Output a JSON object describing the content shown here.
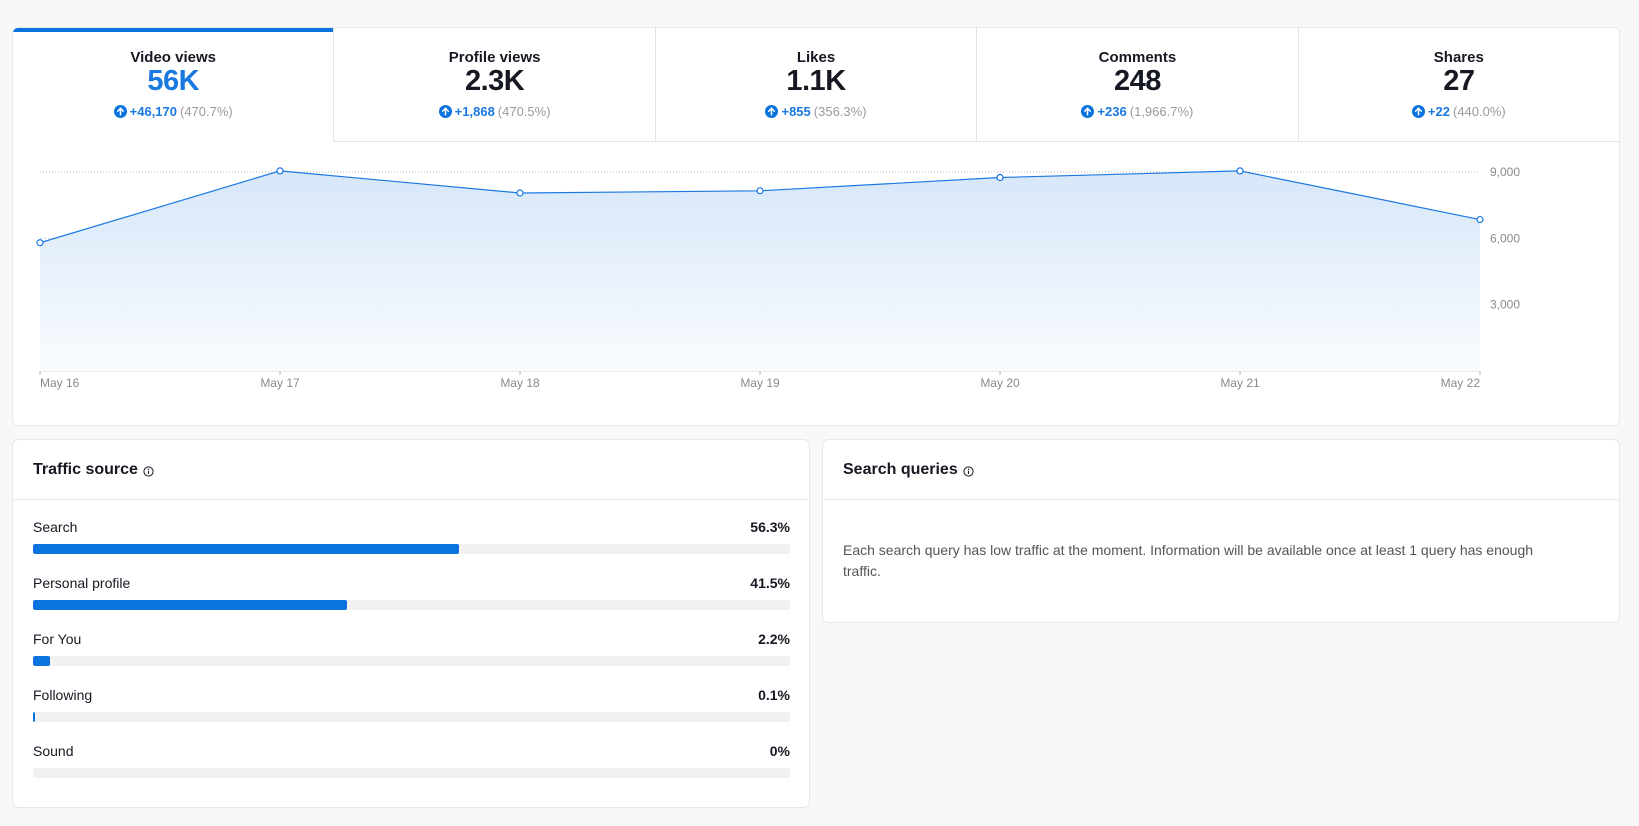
{
  "colors": {
    "accent": "#0b73dd",
    "active_value": "#1a79e0",
    "muted": "#9a9a9e",
    "track": "#f1f1f2"
  },
  "tabs": [
    {
      "label": "Video views",
      "value": "56K",
      "delta": "+46,170",
      "pct": "(470.7%)",
      "active": true
    },
    {
      "label": "Profile views",
      "value": "2.3K",
      "delta": "+1,868",
      "pct": "(470.5%)",
      "active": false
    },
    {
      "label": "Likes",
      "value": "1.1K",
      "delta": "+855",
      "pct": "(356.3%)",
      "active": false
    },
    {
      "label": "Comments",
      "value": "248",
      "delta": "+236",
      "pct": "(1,966.7%)",
      "active": false
    },
    {
      "label": "Shares",
      "value": "27",
      "delta": "+22",
      "pct": "(440.0%)",
      "active": false
    }
  ],
  "chart_data": {
    "type": "area",
    "title": "",
    "xlabel": "",
    "ylabel": "",
    "categories": [
      "May 16",
      "May 17",
      "May 18",
      "May 19",
      "May 20",
      "May 21",
      "May 22"
    ],
    "values": [
      5800,
      9050,
      8050,
      8150,
      8750,
      9050,
      6850
    ],
    "yticks": [
      3000,
      6000,
      9000
    ],
    "ytick_labels": [
      "3,000",
      "6,000",
      "9,000"
    ],
    "ylim": [
      0,
      9000
    ],
    "y_axis_position": "right",
    "grid": true
  },
  "traffic_source": {
    "title": "Traffic source",
    "items": [
      {
        "label": "Search",
        "pct_text": "56.3%",
        "pct": 56.3
      },
      {
        "label": "Personal profile",
        "pct_text": "41.5%",
        "pct": 41.5
      },
      {
        "label": "For You",
        "pct_text": "2.2%",
        "pct": 2.2
      },
      {
        "label": "Following",
        "pct_text": "0.1%",
        "pct": 0.1
      },
      {
        "label": "Sound",
        "pct_text": "0%",
        "pct": 0
      }
    ]
  },
  "search_queries": {
    "title": "Search queries",
    "message": "Each search query has low traffic at the moment. Information will be available once at least 1 query has enough traffic."
  }
}
